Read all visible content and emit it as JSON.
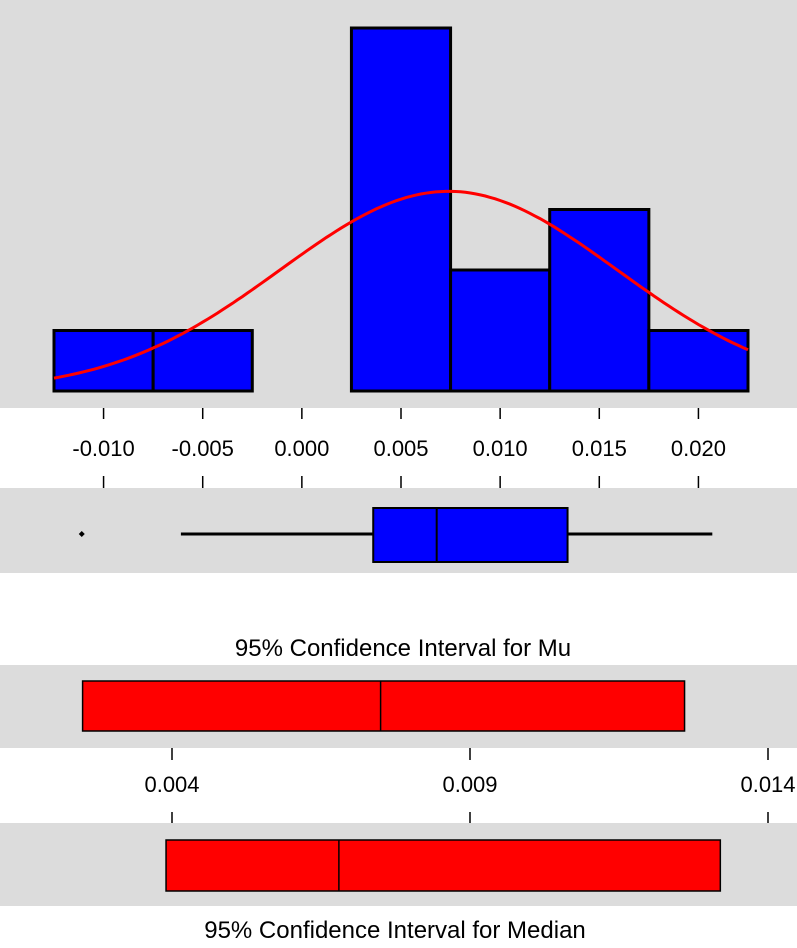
{
  "chart_data": [
    {
      "type": "histogram",
      "bins": [
        {
          "from": -0.0125,
          "to": -0.0075,
          "value": 1
        },
        {
          "from": -0.0075,
          "to": -0.0025,
          "value": 1
        },
        {
          "from": -0.0025,
          "to": 0.0025,
          "value": 0
        },
        {
          "from": 0.0025,
          "to": 0.0075,
          "value": 6
        },
        {
          "from": 0.0075,
          "to": 0.0125,
          "value": 2
        },
        {
          "from": 0.0125,
          "to": 0.0175,
          "value": 3
        },
        {
          "from": 0.0175,
          "to": 0.0225,
          "value": 1
        }
      ],
      "fit_curve": {
        "type": "normal",
        "mean": 0.0074,
        "sd": 0.0085,
        "peak_value": 3.3
      },
      "x_ticks": [
        -0.01,
        -0.005,
        0.0,
        0.005,
        0.01,
        0.015,
        0.02
      ],
      "x_tick_labels": [
        "-0.010",
        "-0.005",
        "0.000",
        "0.005",
        "0.010",
        "0.015",
        "0.020"
      ],
      "ylim": [
        0,
        6
      ],
      "colors": {
        "bars": "#0000ff",
        "curve": "#ff0000",
        "panel": "#dcdcdc"
      }
    },
    {
      "type": "boxplot",
      "outlier": -0.0111,
      "whisker_low": -0.0061,
      "q1": 0.0036,
      "median": 0.0068,
      "q3": 0.0134,
      "whisker_high": 0.0207,
      "colors": {
        "box": "#0000ff"
      }
    },
    {
      "type": "interval",
      "title": "95% Confidence Interval for Mu",
      "lower": 0.0025,
      "mean": 0.0075,
      "upper": 0.0126,
      "colors": {
        "bar": "#ff0000"
      }
    },
    {
      "type": "interval",
      "title": "95% Confidence Interval for Median",
      "lower": 0.0039,
      "median": 0.0068,
      "upper": 0.0132,
      "x_ticks": [
        0.004,
        0.009,
        0.014
      ],
      "x_tick_labels": [
        "0.004",
        "0.009",
        "0.014"
      ],
      "colors": {
        "bar": "#ff0000"
      }
    }
  ]
}
